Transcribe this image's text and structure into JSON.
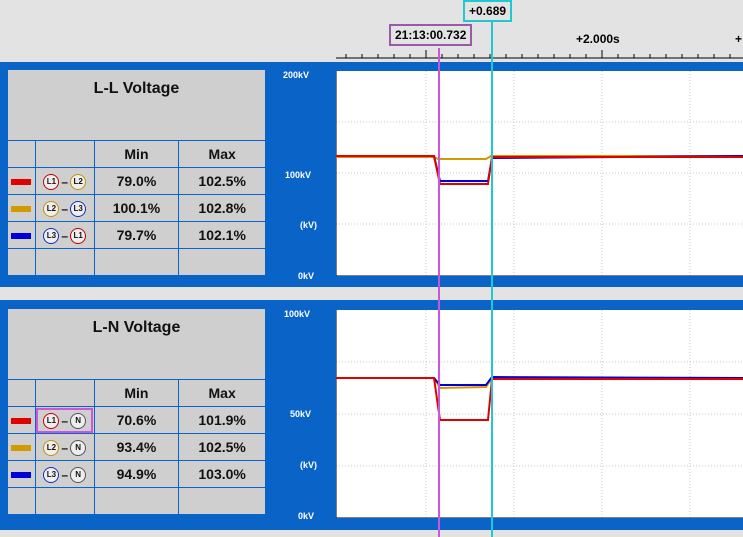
{
  "timeline": {
    "cursor1_time": "21:13:00.732",
    "cursor2_delta": "+0.689",
    "tick_label": "+2.000s",
    "tick_label_cut": "+"
  },
  "ll_panel": {
    "title": "L-L Voltage",
    "col_min": "Min",
    "col_max": "Max",
    "rows": [
      {
        "color": "#e00000",
        "a": "L1",
        "a_color": "#c00000",
        "b": "L2",
        "b_color": "#c89000",
        "min": "79.0%",
        "max": "102.5%"
      },
      {
        "color": "#d29a00",
        "a": "L2",
        "a_color": "#c89000",
        "b": "L3",
        "b_color": "#1030c0",
        "min": "100.1%",
        "max": "102.8%"
      },
      {
        "color": "#0000dd",
        "a": "L3",
        "a_color": "#1030c0",
        "b": "L1",
        "b_color": "#c00000",
        "min": "79.7%",
        "max": "102.1%"
      }
    ],
    "y_top": "200kV",
    "y_mid": "100kV",
    "y_unit": "(kV)",
    "y_bottom": "0kV"
  },
  "ln_panel": {
    "title": "L-N Voltage",
    "col_min": "Min",
    "col_max": "Max",
    "rows": [
      {
        "color": "#e00000",
        "a": "L1",
        "a_color": "#c00000",
        "b": "N",
        "b_color": "#555555",
        "min": "70.6%",
        "max": "101.9%"
      },
      {
        "color": "#d29a00",
        "a": "L2",
        "a_color": "#c89000",
        "b": "N",
        "b_color": "#555555",
        "min": "93.4%",
        "max": "102.5%"
      },
      {
        "color": "#0000dd",
        "a": "L3",
        "a_color": "#1030c0",
        "b": "N",
        "b_color": "#555555",
        "min": "94.9%",
        "max": "103.0%"
      }
    ],
    "y_top": "100kV",
    "y_mid": "50kV",
    "y_unit": "(kV)",
    "y_bottom": "0kV"
  },
  "colors": {
    "panel_bg": "#0a64c8",
    "cursor1": "#cc55dd",
    "cursor2": "#22c8d0",
    "red": "#e00000",
    "orange": "#d29a00",
    "blue": "#0000dd"
  }
}
